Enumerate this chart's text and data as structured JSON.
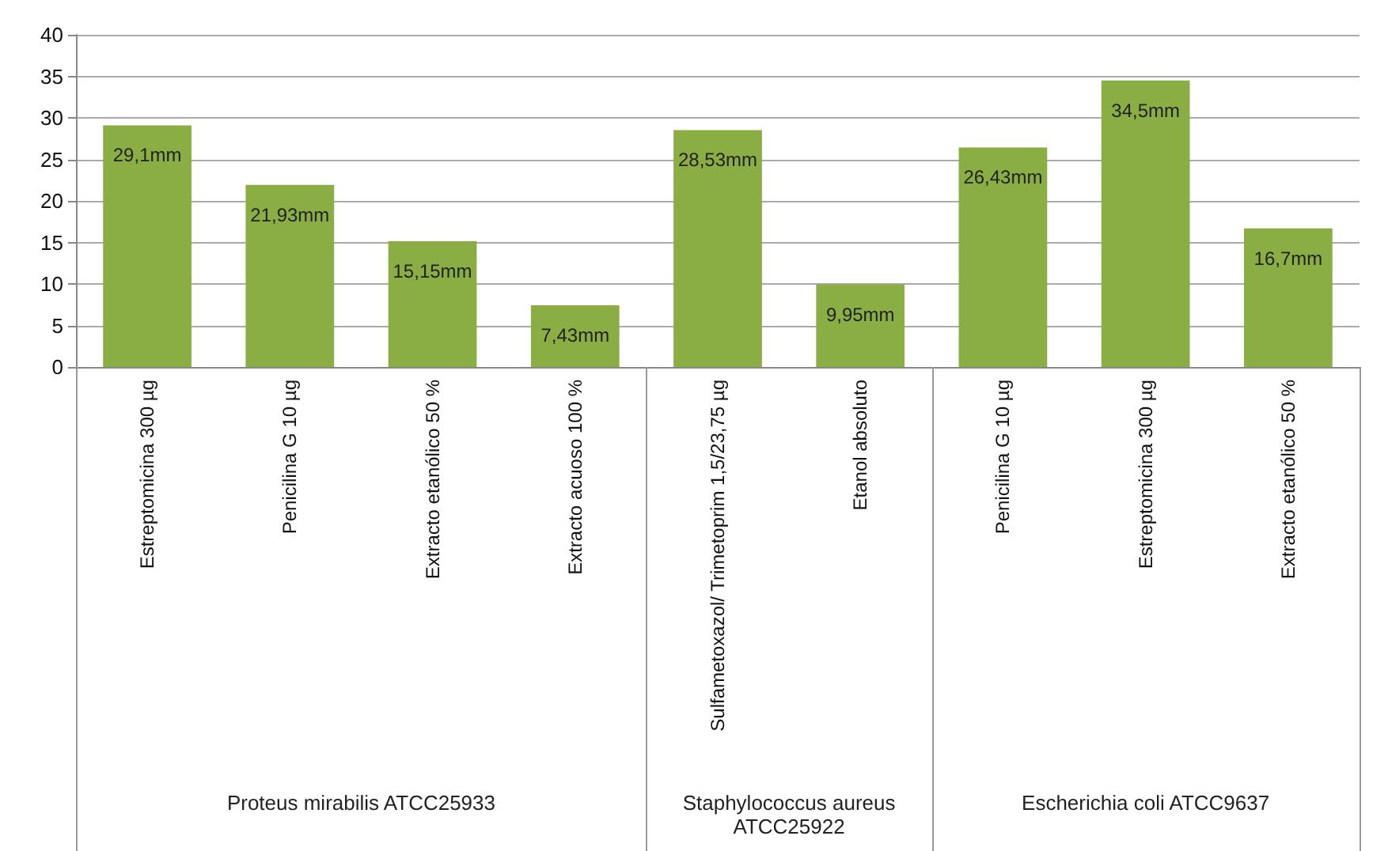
{
  "chart_data": {
    "type": "bar",
    "categories": [
      "Estreptomicina 300 µg",
      "Penicilina G 10 µg",
      "Extracto etanólico 50 %",
      "Extracto acuoso 100 %",
      "Sulfametoxazol/ Trimetoprim 1,5/23,75 µg",
      "Etanol absoluto",
      "Penicilina G 10 µg",
      "Estreptomicina 300 µg",
      "Extracto etanólico 50 %"
    ],
    "series": [
      {
        "color": "#8aae44",
        "values": [
          29.1,
          21.93,
          15.15,
          7.43,
          null,
          null,
          null,
          null,
          null
        ],
        "value_labels": [
          "29,1mm",
          "21,93mm",
          "15,15mm",
          "7,43mm",
          null,
          null,
          null,
          null,
          null
        ]
      },
      {
        "color": "#8aae44",
        "values": [
          null,
          null,
          null,
          null,
          28.53,
          9.95,
          null,
          null,
          null
        ],
        "value_labels": [
          null,
          null,
          null,
          null,
          "28,53mm",
          "9,95mm",
          null,
          null,
          null
        ]
      },
      {
        "color": "#8aae44",
        "values": [
          null,
          null,
          null,
          null,
          null,
          null,
          26.43,
          34.5,
          16.7
        ],
        "value_labels": [
          null,
          null,
          null,
          null,
          null,
          null,
          "26,43mm",
          "34,5mm",
          "16,7mm"
        ]
      }
    ],
    "annotations": [
      "Proteus mirabilis ATCC25933",
      "Staphylococcus aureus ATCC25922",
      "Escherichia coli ATCC9637"
    ],
    "ylim": [
      0,
      40
    ],
    "yticks": [
      0,
      5,
      10,
      15,
      20,
      25,
      30,
      35,
      40
    ],
    "grid": "y"
  }
}
